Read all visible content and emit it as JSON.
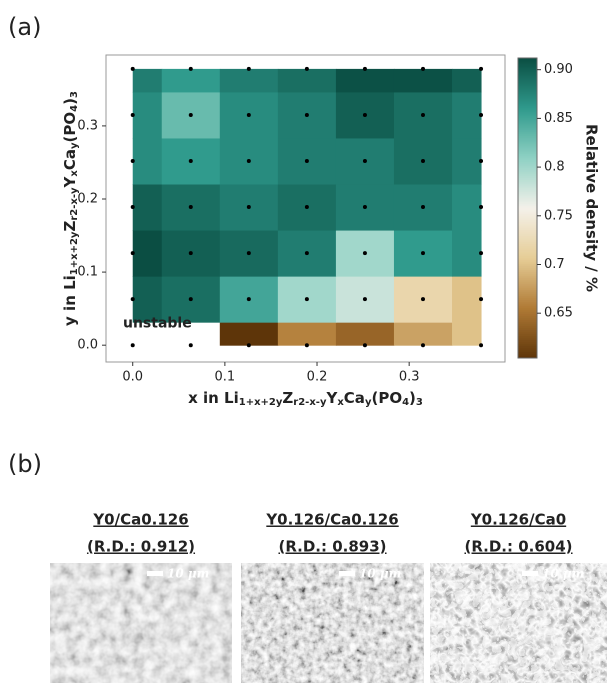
{
  "panel_labels": [
    "(a)",
    "(b)"
  ],
  "chart_data": {
    "type": "heatmap",
    "x": [
      0,
      0.063,
      0.126,
      0.189,
      0.252,
      0.315,
      0.378
    ],
    "y": [
      0,
      0.063,
      0.126,
      0.189,
      0.252,
      0.315,
      0.378
    ],
    "values": [
      [
        null,
        null,
        0.604,
        0.66,
        0.64,
        0.68,
        0.7
      ],
      [
        0.9,
        0.89,
        0.85,
        0.8,
        0.78,
        0.72,
        0.7
      ],
      [
        0.912,
        0.9,
        0.893,
        0.88,
        0.8,
        0.86,
        0.87
      ],
      [
        0.9,
        0.89,
        0.88,
        0.89,
        0.88,
        0.88,
        0.87
      ],
      [
        0.87,
        0.86,
        0.87,
        0.88,
        0.88,
        0.89,
        0.88
      ],
      [
        0.87,
        0.83,
        0.87,
        0.88,
        0.9,
        0.89,
        0.88
      ],
      [
        0.88,
        0.86,
        0.88,
        0.89,
        0.91,
        0.91,
        0.9
      ]
    ],
    "xlim": [
      -0.029,
      0.404
    ],
    "ylim": [
      -0.023,
      0.397
    ],
    "xticks": [
      {
        "value": 0,
        "label": "0.0"
      },
      0.1,
      0.2,
      0.3
    ],
    "yticks": [
      {
        "value": 0,
        "label": "0.0"
      },
      0.1,
      0.2,
      0.3
    ],
    "xlabel": [
      "x in Li",
      "1+x+2y",
      "Z",
      "r2-x-y",
      "Y",
      "x",
      "Ca",
      "y",
      "(PO",
      "4",
      ")",
      "3"
    ],
    "ylabel": [
      "y in Li",
      "1+x+2y",
      "Z",
      "r2-x-y",
      "Y",
      "x",
      "Ca",
      "y",
      "(PO",
      "4",
      ")",
      "3"
    ],
    "annotation": "unstable",
    "colorbar_label": "Relative density / %",
    "clim": [
      0.604,
      0.912
    ],
    "cticks": [
      0.65,
      0.7,
      0.75,
      0.8,
      0.85,
      {
        "value": 0.9,
        "label": "0.90"
      }
    ],
    "colorscale": [
      "#5e3509",
      "#b07a35",
      "#e6cd96",
      "#f4f1ea",
      "#8fd1c4",
      "#2f9a8c",
      "#0b4e43"
    ]
  },
  "micrographs": [
    {
      "title": "Y0/Ca0.126",
      "subtitle": "(R.D.: 0.912)",
      "scale_label": "10 μm"
    },
    {
      "title": "Y0.126/Ca0.126",
      "subtitle": "(R.D.: 0.893)",
      "scale_label": "10 μm"
    },
    {
      "title": "Y0.126/Ca0",
      "subtitle": "(R.D.: 0.604)",
      "scale_label": "10 μm"
    }
  ]
}
